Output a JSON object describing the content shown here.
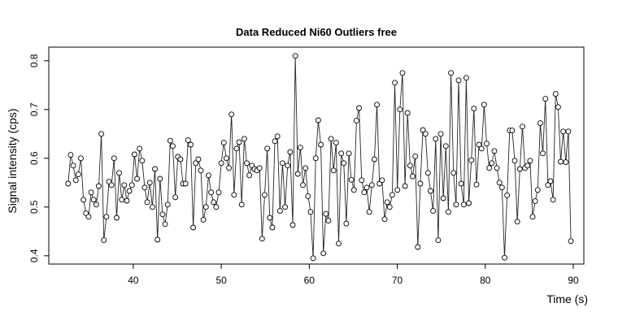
{
  "chart_data": {
    "type": "line",
    "title": "Data Reduced Ni60 Outliers free",
    "x_label": "Time (s)",
    "y_label": "Signal intensity (cps)",
    "color": "#000000",
    "xlim": [
      30.4,
      91.2
    ],
    "ylim": [
      0.383,
      0.828
    ],
    "xticks": [
      40,
      50,
      60,
      70,
      80,
      90
    ],
    "yticks": [
      0.4,
      0.5,
      0.6,
      0.7,
      0.8
    ],
    "x": [
      32.6,
      32.89,
      33.18,
      33.47,
      33.76,
      34.05,
      34.34,
      34.63,
      34.92,
      35.21,
      35.5,
      35.79,
      36.08,
      36.37,
      36.66,
      36.95,
      37.24,
      37.53,
      37.82,
      38.11,
      38.4,
      38.69,
      38.98,
      39.27,
      39.56,
      39.85,
      40.14,
      40.43,
      40.72,
      41.01,
      41.3,
      41.59,
      41.88,
      42.17,
      42.46,
      42.75,
      43.04,
      43.33,
      43.62,
      43.91,
      44.2,
      44.49,
      44.78,
      45.07,
      45.36,
      45.65,
      45.94,
      46.23,
      46.52,
      46.81,
      47.1,
      47.39,
      47.68,
      47.97,
      48.26,
      48.55,
      48.84,
      49.13,
      49.42,
      49.71,
      50,
      50.29,
      50.58,
      50.87,
      51.16,
      51.45,
      51.74,
      52.03,
      52.32,
      52.61,
      52.9,
      53.19,
      53.48,
      53.77,
      54.06,
      54.35,
      54.64,
      54.93,
      55.22,
      55.51,
      55.8,
      56.09,
      56.38,
      56.67,
      56.96,
      57.25,
      57.54,
      57.83,
      58.12,
      58.41,
      58.7,
      58.99,
      59.28,
      59.57,
      59.86,
      60.15,
      60.44,
      60.73,
      61.02,
      61.31,
      61.6,
      61.89,
      62.18,
      62.47,
      62.76,
      63.05,
      63.34,
      63.63,
      63.92,
      64.21,
      64.5,
      64.79,
      65.08,
      65.37,
      65.66,
      65.95,
      66.24,
      66.53,
      66.82,
      67.11,
      67.4,
      67.69,
      67.98,
      68.27,
      68.56,
      68.85,
      69.14,
      69.43,
      69.72,
      70.01,
      70.3,
      70.59,
      70.88,
      71.17,
      71.46,
      71.75,
      72.04,
      72.33,
      72.62,
      72.91,
      73.2,
      73.49,
      73.78,
      74.07,
      74.36,
      74.65,
      74.94,
      75.23,
      75.52,
      75.81,
      76.1,
      76.39,
      76.68,
      76.97,
      77.26,
      77.55,
      77.84,
      78.13,
      78.42,
      78.71,
      79,
      79.29,
      79.58,
      79.87,
      80.16,
      80.45,
      80.74,
      81.03,
      81.32,
      81.61,
      81.9,
      82.19,
      82.48,
      82.77,
      83.06,
      83.35,
      83.64,
      83.93,
      84.22,
      84.51,
      84.8,
      85.09,
      85.38,
      85.67,
      85.96,
      86.25,
      86.54,
      86.83,
      87.12,
      87.41,
      87.7,
      87.99,
      88.28,
      88.57,
      88.86,
      89.15,
      89.44,
      89.73
    ],
    "values": [
      0.548,
      0.607,
      0.585,
      0.555,
      0.567,
      0.6,
      0.515,
      0.487,
      0.48,
      0.53,
      0.515,
      0.505,
      0.543,
      0.65,
      0.432,
      0.48,
      0.552,
      0.545,
      0.6,
      0.478,
      0.57,
      0.515,
      0.545,
      0.513,
      0.533,
      0.545,
      0.608,
      0.558,
      0.62,
      0.595,
      0.54,
      0.51,
      0.55,
      0.5,
      0.578,
      0.433,
      0.558,
      0.485,
      0.465,
      0.505,
      0.636,
      0.625,
      0.52,
      0.603,
      0.598,
      0.548,
      0.548,
      0.637,
      0.628,
      0.458,
      0.59,
      0.598,
      0.575,
      0.474,
      0.5,
      0.565,
      0.53,
      0.51,
      0.5,
      0.53,
      0.59,
      0.632,
      0.6,
      0.58,
      0.69,
      0.525,
      0.62,
      0.633,
      0.505,
      0.64,
      0.59,
      0.565,
      0.585,
      0.578,
      0.575,
      0.58,
      0.435,
      0.525,
      0.62,
      0.478,
      0.458,
      0.635,
      0.645,
      0.492,
      0.59,
      0.5,
      0.585,
      0.613,
      0.463,
      0.81,
      0.568,
      0.622,
      0.545,
      0.58,
      0.522,
      0.49,
      0.395,
      0.6,
      0.678,
      0.628,
      0.405,
      0.486,
      0.472,
      0.64,
      0.575,
      0.632,
      0.425,
      0.61,
      0.59,
      0.466,
      0.61,
      0.556,
      0.535,
      0.677,
      0.703,
      0.555,
      0.53,
      0.54,
      0.49,
      0.545,
      0.598,
      0.71,
      0.548,
      0.555,
      0.475,
      0.51,
      0.5,
      0.525,
      0.755,
      0.535,
      0.7,
      0.775,
      0.543,
      0.693,
      0.585,
      0.563,
      0.604,
      0.418,
      0.548,
      0.658,
      0.65,
      0.57,
      0.533,
      0.492,
      0.64,
      0.432,
      0.65,
      0.518,
      0.625,
      0.49,
      0.775,
      0.57,
      0.505,
      0.76,
      0.548,
      0.505,
      0.765,
      0.508,
      0.596,
      0.702,
      0.546,
      0.628,
      0.62,
      0.71,
      0.63,
      0.58,
      0.59,
      0.615,
      0.58,
      0.55,
      0.54,
      0.396,
      0.524,
      0.657,
      0.657,
      0.595,
      0.47,
      0.578,
      0.665,
      0.58,
      0.585,
      0.595,
      0.48,
      0.512,
      0.535,
      0.672,
      0.61,
      0.722,
      0.545,
      0.553,
      0.515,
      0.732,
      0.705,
      0.593,
      0.655,
      0.592,
      0.655,
      0.43
    ]
  }
}
